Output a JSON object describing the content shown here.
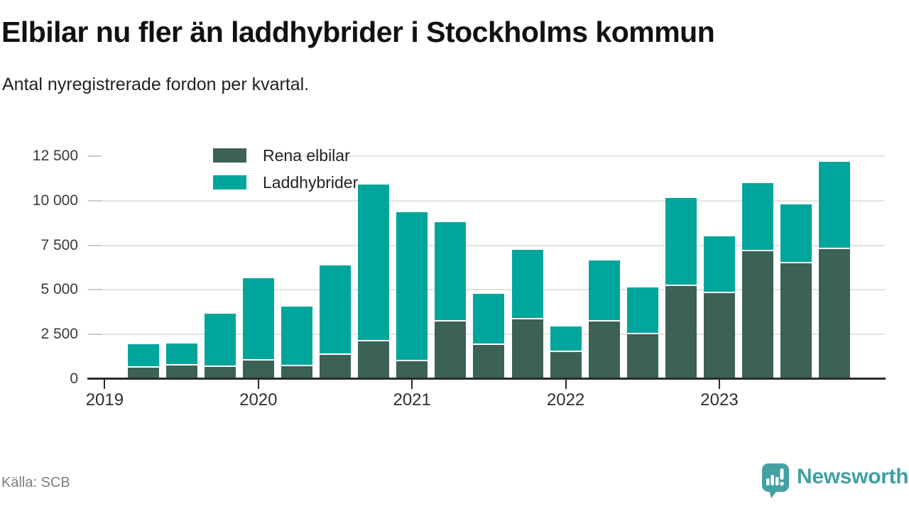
{
  "header": {
    "title": "Elbilar nu fler än laddhybrider i Stockholms kommun",
    "subtitle": "Antal nyregistrerade fordon per kvartal."
  },
  "legend": [
    {
      "label": "Rena elbilar",
      "color": "#3c6156"
    },
    {
      "label": "Laddhybrider",
      "color": "#00a69c"
    }
  ],
  "chart_data": {
    "type": "bar",
    "stacked": true,
    "title": "Elbilar nu fler än laddhybrider i Stockholms kommun",
    "subtitle": "Antal nyregistrerade fordon per kvartal.",
    "categories": [
      "2019 Q2",
      "2019 Q3",
      "2019 Q4",
      "2020 Q1",
      "2020 Q2",
      "2020 Q3",
      "2020 Q4",
      "2021 Q1",
      "2021 Q2",
      "2021 Q3",
      "2021 Q4",
      "2022 Q1",
      "2022 Q2",
      "2022 Q3",
      "2022 Q4",
      "2023 Q1",
      "2023 Q2",
      "2023 Q3",
      "2023 Q4"
    ],
    "series": [
      {
        "name": "Rena elbilar",
        "color": "#3c6156",
        "values": [
          650,
          760,
          660,
          1050,
          700,
          1340,
          2110,
          1000,
          3220,
          1930,
          3360,
          1520,
          3210,
          2520,
          5220,
          4820,
          7180,
          6470,
          7280
        ]
      },
      {
        "name": "Laddhybrider",
        "color": "#00a69c",
        "values": [
          1300,
          1240,
          3000,
          4620,
          3360,
          5020,
          8810,
          8370,
          5580,
          2850,
          3870,
          1410,
          3440,
          2610,
          4950,
          3200,
          3810,
          3340,
          4890
        ]
      }
    ],
    "totals": [
      1950,
      2000,
      3660,
      5670,
      4060,
      6360,
      10920,
      9370,
      8800,
      4780,
      7230,
      2930,
      6650,
      5130,
      10170,
      8020,
      10990,
      9810,
      12170
    ],
    "ylim": [
      0,
      12500
    ],
    "yticks": [
      0,
      2500,
      5000,
      7500,
      10000,
      12500
    ],
    "ytick_labels": [
      "0",
      "2 500",
      "5 000",
      "7 500",
      "10 000",
      "12 500"
    ],
    "xticks": [
      "2019",
      "2020",
      "2021",
      "2022",
      "2023"
    ],
    "grid": "horizontal",
    "legend_position": "top-left"
  },
  "footer": {
    "source": "Källa: SCB",
    "brand": "Newsworthy"
  },
  "colors": {
    "elbilar": "#3c6156",
    "laddhybrider": "#00a69c",
    "axis": "#2b2b2b",
    "grid": "#e3e3e3",
    "brand_teal": "#3f9fa3"
  }
}
